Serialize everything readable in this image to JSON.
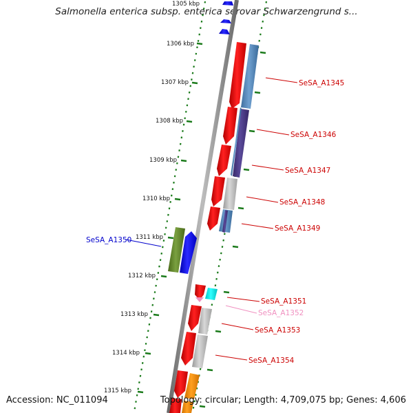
{
  "title": "Salmonella enterica subsp. enterica serovar Schwarzengrund s...",
  "footer": {
    "accession": "Accession: NC_011094",
    "summary": "Topology: circular; Length: 4,709,075 bp; Genes: 4,606"
  },
  "scale_labels": [
    {
      "label": "1305 kbp",
      "kbp": 1305
    },
    {
      "label": "1306 kbp",
      "kbp": 1306
    },
    {
      "label": "1307 kbp",
      "kbp": 1307
    },
    {
      "label": "1308 kbp",
      "kbp": 1308
    },
    {
      "label": "1309 kbp",
      "kbp": 1309
    },
    {
      "label": "1310 kbp",
      "kbp": 1310
    },
    {
      "label": "1311 kbp",
      "kbp": 1311
    },
    {
      "label": "1312 kbp",
      "kbp": 1312
    },
    {
      "label": "1313 kbp",
      "kbp": 1313
    },
    {
      "label": "1314 kbp",
      "kbp": 1314
    },
    {
      "label": "1315 kbp",
      "kbp": 1315
    }
  ],
  "gene_labels": [
    {
      "name": "SeSA_A1345",
      "color": "#cc0000"
    },
    {
      "name": "SeSA_A1346",
      "color": "#cc0000"
    },
    {
      "name": "SeSA_A1347",
      "color": "#cc0000"
    },
    {
      "name": "SeSA_A1348",
      "color": "#cc0000"
    },
    {
      "name": "SeSA_A1349",
      "color": "#cc0000"
    },
    {
      "name": "SeSA_A1350",
      "color": "#0000cc"
    },
    {
      "name": "SeSA_A1351",
      "color": "#cc0000"
    },
    {
      "name": "SeSA_A1352",
      "color": "#f090c0"
    },
    {
      "name": "SeSA_A1353",
      "color": "#cc0000"
    },
    {
      "name": "SeSA_A1354",
      "color": "#cc0000"
    }
  ],
  "colors": {
    "forward_cds": "#ff0000",
    "reverse_cds": "#0000ff",
    "backbone": "#888888",
    "tick": "#1a7a1a"
  }
}
